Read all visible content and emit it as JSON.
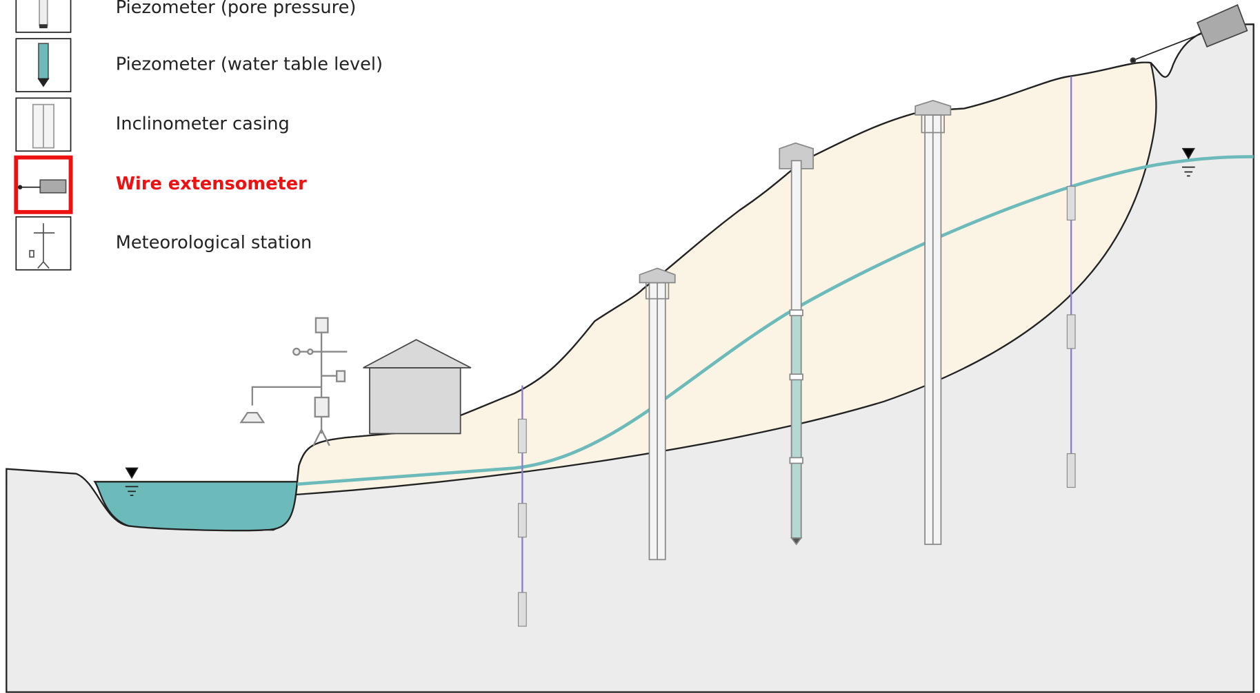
{
  "legend": {
    "items": [
      {
        "label": "Piezometer (pore pressure)"
      },
      {
        "label": "Piezometer (water table level)"
      },
      {
        "label": "Inclinometer casing"
      },
      {
        "label": "Wire extensometer"
      },
      {
        "label": "Meteorological station"
      }
    ],
    "selected": 3
  }
}
